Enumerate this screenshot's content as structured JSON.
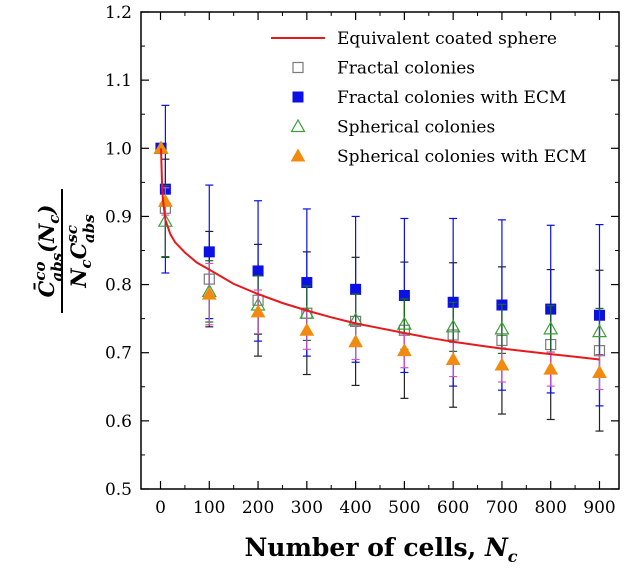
{
  "chart_data": {
    "type": "scatter",
    "title": "",
    "xlabel": "Number of cells, Nc",
    "xlabel_text": "Number of cells, ",
    "xlabel_var": "N",
    "xlabel_sub": "c",
    "ylabel": "C̄co_abs(Nc) / Nc Csc_abs",
    "ylabel_numerator": "C̄",
    "ylabel_num_sup": "co",
    "ylabel_num_sub": "abs",
    "ylabel_num_arg": "(N",
    "ylabel_num_arg_sub": "c",
    "ylabel_num_close": ")",
    "ylabel_denominator": "N",
    "ylabel_den_sub1": "c",
    "ylabel_den_C": "C",
    "ylabel_den_sup": "sc",
    "ylabel_den_sub2": "abs",
    "xlim": [
      -40,
      940
    ],
    "ylim": [
      0.5,
      1.2
    ],
    "xticks": [
      0,
      100,
      200,
      300,
      400,
      500,
      600,
      700,
      800,
      900
    ],
    "xtick_labels": [
      "0",
      "100",
      "200",
      "300",
      "400",
      "500",
      "600",
      "700",
      "800",
      "900"
    ],
    "yticks": [
      0.5,
      0.6,
      0.7,
      0.8,
      0.9,
      1.0,
      1.1,
      1.2
    ],
    "ytick_labels": [
      "0.5",
      "0.6",
      "0.7",
      "0.8",
      "0.9",
      "1.0",
      "1.1",
      "1.2"
    ],
    "grid": false,
    "legend_position": "top-right",
    "line": {
      "name": "Equivalent coated sphere",
      "color": "#e8191c",
      "x": [
        1,
        3,
        5,
        10,
        20,
        30,
        50,
        75,
        100,
        150,
        200,
        250,
        300,
        350,
        400,
        450,
        500,
        550,
        600,
        650,
        700,
        750,
        800,
        850,
        900
      ],
      "y": [
        1.0,
        0.95,
        0.925,
        0.895,
        0.874,
        0.862,
        0.847,
        0.832,
        0.822,
        0.801,
        0.786,
        0.773,
        0.762,
        0.752,
        0.743,
        0.736,
        0.729,
        0.722,
        0.716,
        0.711,
        0.706,
        0.702,
        0.698,
        0.694,
        0.69
      ]
    },
    "series": [
      {
        "name": "Fractal colonies",
        "marker": "square-open",
        "color": "#7a7a7a",
        "errcolor": "#222222",
        "x": [
          1,
          10,
          100,
          200,
          300,
          400,
          500,
          600,
          700,
          800,
          900
        ],
        "y": [
          1.0,
          0.912,
          0.808,
          0.777,
          0.758,
          0.746,
          0.733,
          0.726,
          0.718,
          0.712,
          0.703
        ],
        "err": [
          0.0,
          0.072,
          0.07,
          0.082,
          0.09,
          0.094,
          0.1,
          0.106,
          0.108,
          0.11,
          0.118
        ]
      },
      {
        "name": "Fractal colonies with ECM",
        "marker": "square-filled",
        "color": "#0b10e6",
        "errcolor": "#0b10e6",
        "x": [
          1,
          10,
          100,
          200,
          300,
          400,
          500,
          600,
          700,
          800,
          900
        ],
        "y": [
          1.0,
          0.94,
          0.848,
          0.82,
          0.803,
          0.793,
          0.784,
          0.774,
          0.77,
          0.764,
          0.755
        ],
        "err": [
          0.0,
          0.123,
          0.098,
          0.103,
          0.108,
          0.107,
          0.113,
          0.123,
          0.125,
          0.123,
          0.133
        ]
      },
      {
        "name": "Spherical colonies",
        "marker": "triangle-open",
        "color": "#3aa03a",
        "errcolor": "#1d6b1d",
        "x": [
          1,
          10,
          100,
          200,
          300,
          400,
          500,
          600,
          700,
          800,
          900
        ],
        "y": [
          1.0,
          0.893,
          0.79,
          0.77,
          0.758,
          0.748,
          0.742,
          0.738,
          0.735,
          0.735,
          0.731
        ],
        "err": [
          0.0,
          0.052,
          0.045,
          0.043,
          0.04,
          0.038,
          0.037,
          0.036,
          0.036,
          0.034,
          0.034
        ]
      },
      {
        "name": "Spherical colonies with ECM",
        "marker": "triangle-filled",
        "color": "#f28a10",
        "errcolor": "#d255c8",
        "x": [
          1,
          10,
          100,
          200,
          300,
          400,
          500,
          600,
          700,
          800,
          900
        ],
        "y": [
          1.0,
          0.922,
          0.786,
          0.76,
          0.733,
          0.716,
          0.703,
          0.69,
          0.682,
          0.676,
          0.671
        ],
        "err": [
          0.0,
          0.02,
          0.045,
          0.032,
          0.028,
          0.026,
          0.025,
          0.025,
          0.025,
          0.025,
          0.025
        ]
      }
    ]
  }
}
